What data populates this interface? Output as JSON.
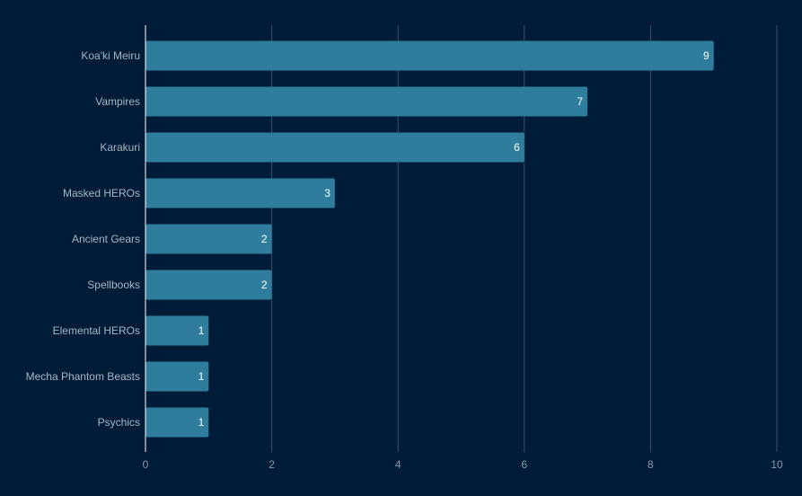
{
  "chart_data": {
    "type": "bar",
    "orientation": "horizontal",
    "categories": [
      "Koa'ki Meiru",
      "Vampires",
      "Karakuri",
      "Masked HEROs",
      "Ancient Gears",
      "Spellbooks",
      "Elemental HEROs",
      "Mecha Phantom Beasts",
      "Psychics"
    ],
    "values": [
      9,
      7,
      6,
      3,
      2,
      2,
      1,
      1,
      1
    ],
    "xlim": [
      0,
      10
    ],
    "xticks": [
      0,
      2,
      4,
      6,
      8,
      10
    ],
    "grid": true,
    "data_labels": true,
    "title": "",
    "xlabel": "",
    "ylabel": "",
    "colors": {
      "background": "#011c38",
      "bar": "#2e7d9c",
      "grid": "#3a5068",
      "axis": "#ffffff"
    }
  }
}
